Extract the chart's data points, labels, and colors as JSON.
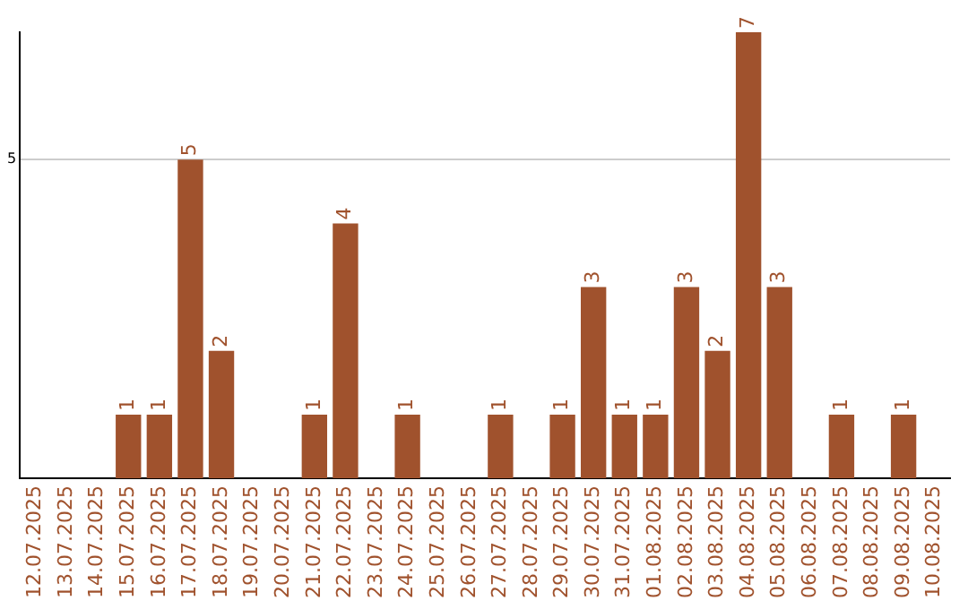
{
  "chart_data": {
    "type": "bar",
    "categories": [
      "12.07.2025",
      "13.07.2025",
      "14.07.2025",
      "15.07.2025",
      "16.07.2025",
      "17.07.2025",
      "18.07.2025",
      "19.07.2025",
      "20.07.2025",
      "21.07.2025",
      "22.07.2025",
      "23.07.2025",
      "24.07.2025",
      "25.07.2025",
      "26.07.2025",
      "27.07.2025",
      "28.07.2025",
      "29.07.2025",
      "30.07.2025",
      "31.07.2025",
      "01.08.2025",
      "02.08.2025",
      "03.08.2025",
      "04.08.2025",
      "05.08.2025",
      "06.08.2025",
      "07.08.2025",
      "08.08.2025",
      "09.08.2025",
      "10.08.2025"
    ],
    "values": [
      0,
      0,
      0,
      1,
      1,
      5,
      2,
      0,
      0,
      1,
      4,
      0,
      1,
      0,
      0,
      1,
      0,
      1,
      3,
      1,
      1,
      3,
      2,
      7,
      3,
      0,
      1,
      0,
      1,
      0
    ],
    "value_labels": [
      null,
      null,
      null,
      "1",
      "1",
      "5",
      "2",
      null,
      null,
      "1",
      "4",
      null,
      "1",
      null,
      null,
      "1",
      null,
      "1",
      "3",
      "1",
      "1",
      "3",
      "2",
      "7",
      "3",
      null,
      "1",
      null,
      "1",
      null
    ],
    "color": "#a0522d",
    "ylim": [
      0,
      7
    ],
    "yticks": [
      5
    ],
    "grid": "y",
    "legend": false
  }
}
